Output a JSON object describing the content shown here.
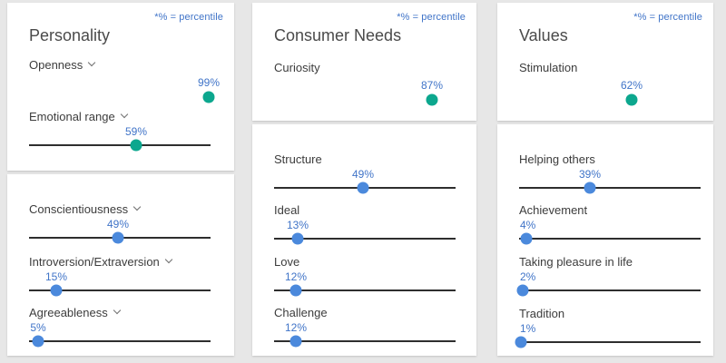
{
  "percentile_note": "*% = percentile",
  "colors": {
    "background": "#e7e7e7",
    "card": "#ffffff",
    "accent_blue_text": "#4074c8",
    "teal": "#0ca78e",
    "blue": "#4b89dc",
    "track": "#2e2e2e",
    "label_text": "#3c3c3c",
    "title_text": "#4a4a4a"
  },
  "columns": [
    {
      "title": "Personality",
      "cards": [
        {
          "traits": [
            {
              "label": "Openness",
              "has_chevron": true,
              "percentile": 99,
              "value_label": "99%",
              "dot_color": "teal",
              "show_track": false
            },
            {
              "label": "Emotional range",
              "has_chevron": true,
              "percentile": 59,
              "value_label": "59%",
              "dot_color": "teal",
              "show_track": true
            }
          ]
        },
        {
          "traits": [
            {
              "label": "Conscientiousness",
              "has_chevron": true,
              "percentile": 49,
              "value_label": "49%",
              "dot_color": "blue",
              "show_track": true
            },
            {
              "label": "Introversion/Extraversion",
              "has_chevron": true,
              "percentile": 15,
              "value_label": "15%",
              "dot_color": "blue",
              "show_track": true
            },
            {
              "label": "Agreeableness",
              "has_chevron": true,
              "percentile": 5,
              "value_label": "5%",
              "dot_color": "blue",
              "show_track": true
            }
          ]
        }
      ]
    },
    {
      "title": "Consumer Needs",
      "cards": [
        {
          "traits": [
            {
              "label": "Curiosity",
              "has_chevron": false,
              "percentile": 87,
              "value_label": "87%",
              "dot_color": "teal",
              "show_track": false
            }
          ]
        },
        {
          "traits": [
            {
              "label": "Structure",
              "has_chevron": false,
              "percentile": 49,
              "value_label": "49%",
              "dot_color": "blue",
              "show_track": true
            },
            {
              "label": "Ideal",
              "has_chevron": false,
              "percentile": 13,
              "value_label": "13%",
              "dot_color": "blue",
              "show_track": true
            },
            {
              "label": "Love",
              "has_chevron": false,
              "percentile": 12,
              "value_label": "12%",
              "dot_color": "blue",
              "show_track": true
            },
            {
              "label": "Challenge",
              "has_chevron": false,
              "percentile": 12,
              "value_label": "12%",
              "dot_color": "blue",
              "show_track": true
            }
          ]
        }
      ]
    },
    {
      "title": "Values",
      "cards": [
        {
          "traits": [
            {
              "label": "Stimulation",
              "has_chevron": false,
              "percentile": 62,
              "value_label": "62%",
              "dot_color": "teal",
              "show_track": false
            }
          ]
        },
        {
          "traits": [
            {
              "label": "Helping others",
              "has_chevron": false,
              "percentile": 39,
              "value_label": "39%",
              "dot_color": "blue",
              "show_track": true
            },
            {
              "label": "Achievement",
              "has_chevron": false,
              "percentile": 4,
              "value_label": "4%",
              "dot_color": "blue",
              "show_track": true
            },
            {
              "label": "Taking pleasure in life",
              "has_chevron": false,
              "percentile": 2,
              "value_label": "2%",
              "dot_color": "blue",
              "show_track": true
            },
            {
              "label": "Tradition",
              "has_chevron": false,
              "percentile": 1,
              "value_label": "1%",
              "dot_color": "blue",
              "show_track": true
            }
          ]
        }
      ]
    }
  ]
}
